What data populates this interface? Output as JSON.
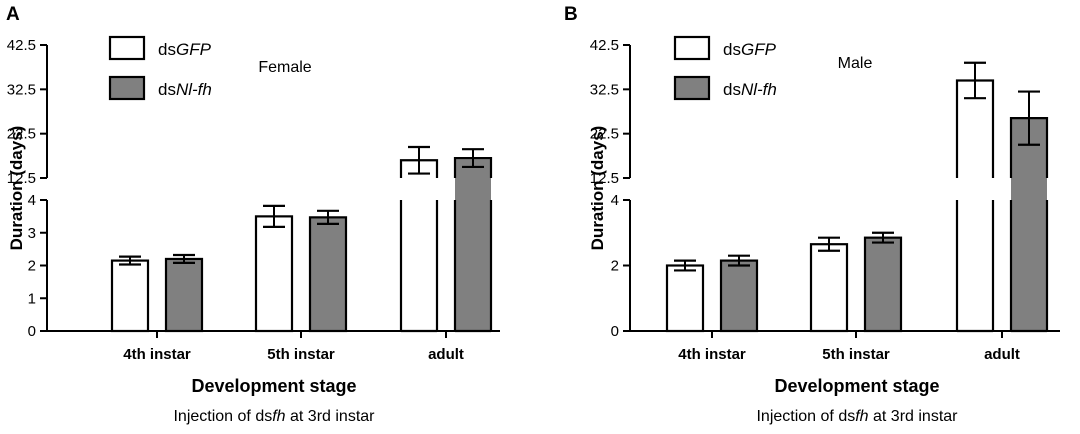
{
  "figure": {
    "colors": {
      "control": "#ffffff",
      "treatment": "#808080",
      "stroke": "#000000"
    }
  },
  "chart_data": [
    {
      "panel": "A",
      "type": "bar",
      "title": "Female",
      "categories": [
        "4th instar",
        "5th instar",
        "adult"
      ],
      "series": [
        {
          "name": "dsGFP",
          "name_parts": [
            "ds",
            "GFP"
          ],
          "values": [
            2.15,
            3.5,
            16.5
          ],
          "errors": [
            0.12,
            0.32,
            3.0
          ]
        },
        {
          "name": "dsNl-fh",
          "name_parts": [
            "ds",
            "Nl-fh"
          ],
          "values": [
            2.2,
            3.47,
            17.0
          ],
          "errors": [
            0.12,
            0.2,
            2.0
          ]
        }
      ],
      "xlabel": "Development stage",
      "xnote_parts": [
        "Injection of ds",
        "fh",
        " at 3rd instar"
      ],
      "ylabel": "Duration (days)",
      "lower_ylim": [
        0,
        4
      ],
      "lower_ticks": [
        "0",
        "1",
        "2",
        "3",
        "4"
      ],
      "upper_ylim": [
        12.5,
        42.5
      ],
      "upper_ticks": [
        "12.5",
        "22.5",
        "32.5",
        "42.5"
      ]
    },
    {
      "panel": "B",
      "type": "bar",
      "title": "Male",
      "categories": [
        "4th instar",
        "5th instar",
        "adult"
      ],
      "series": [
        {
          "name": "dsGFP",
          "name_parts": [
            "ds",
            "GFP"
          ],
          "values": [
            2.0,
            2.65,
            34.5
          ],
          "errors": [
            0.15,
            0.2,
            4.0
          ]
        },
        {
          "name": "dsNl-fh",
          "name_parts": [
            "ds",
            "Nl-fh"
          ],
          "values": [
            2.15,
            2.85,
            26.0
          ],
          "errors": [
            0.15,
            0.15,
            6.0
          ]
        }
      ],
      "xlabel": "Development stage",
      "xnote_parts": [
        "Injection of ds",
        "fh",
        " at 3rd instar"
      ],
      "ylabel": "Duration (days)",
      "lower_ylim": [
        0,
        4
      ],
      "lower_ticks": [
        "0",
        "2",
        "4"
      ],
      "upper_ylim": [
        12.5,
        42.5
      ],
      "upper_ticks": [
        "12.5",
        "22.5",
        "32.5",
        "42.5"
      ]
    }
  ]
}
